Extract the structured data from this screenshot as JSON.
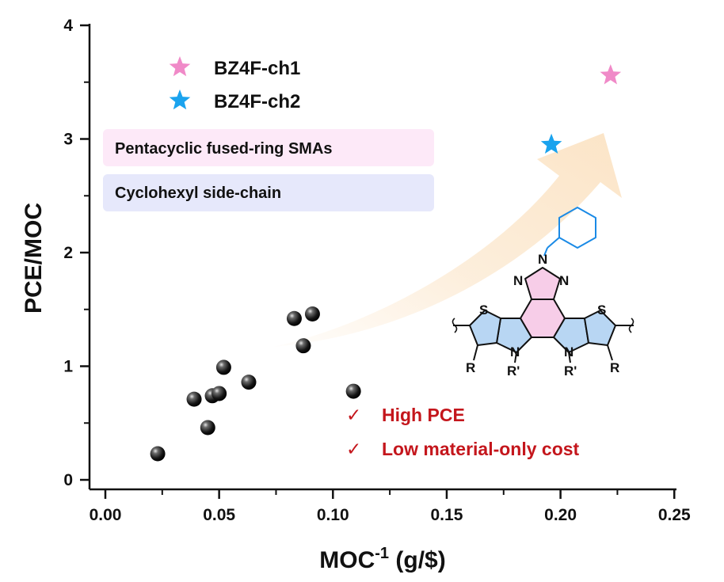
{
  "chart_data": {
    "type": "scatter",
    "xlabel": "MOC",
    "xlabel_sup": "-1",
    "xlabel_unit": " (g/$)",
    "ylabel": "PCE/MOC",
    "xlim": [
      -0.01,
      0.25
    ],
    "ylim": [
      -0.1,
      4.0
    ],
    "x_ticks": [
      "0.00",
      "0.05",
      "0.10",
      "0.15",
      "0.20",
      "0.25"
    ],
    "y_ticks": [
      "0",
      "1",
      "2",
      "3",
      "4"
    ],
    "grid": false,
    "legend_position": "top-left",
    "series": [
      {
        "name": "",
        "marker": "sphere",
        "color": "#111111",
        "points": [
          {
            "x": 0.023,
            "y": 0.23
          },
          {
            "x": 0.039,
            "y": 0.71
          },
          {
            "x": 0.045,
            "y": 0.46
          },
          {
            "x": 0.047,
            "y": 0.74
          },
          {
            "x": 0.05,
            "y": 0.76
          },
          {
            "x": 0.052,
            "y": 0.99
          },
          {
            "x": 0.063,
            "y": 0.86
          },
          {
            "x": 0.083,
            "y": 1.42
          },
          {
            "x": 0.087,
            "y": 1.18
          },
          {
            "x": 0.091,
            "y": 1.46
          },
          {
            "x": 0.109,
            "y": 0.78
          }
        ]
      },
      {
        "name": "BZ4F-ch1",
        "marker": "star",
        "color": "#f08ac8",
        "points": [
          {
            "x": 0.222,
            "y": 3.56
          }
        ]
      },
      {
        "name": "BZ4F-ch2",
        "marker": "star",
        "color": "#1aa3ee",
        "points": [
          {
            "x": 0.196,
            "y": 2.95
          }
        ]
      }
    ],
    "annotations": {
      "boxes": [
        {
          "text": "Pentacyclic fused-ring SMAs",
          "color": "#fde9f8"
        },
        {
          "text": "Cyclohexyl side-chain",
          "color": "#e6e8fb"
        }
      ],
      "checks": [
        {
          "mark": "✓",
          "text": "High PCE"
        },
        {
          "mark": "✓",
          "text": "Low material-only cost"
        }
      ],
      "check_color": "#c4161c",
      "arrow_color": "#fbe3c4"
    },
    "molecule": {
      "atoms_N": "N",
      "atoms_S": "S",
      "sidechain_R": "R",
      "sidechain_R_prime": "R'",
      "pink_ring_color": "#f7cde8",
      "blue_ring_color": "#b8d6f3",
      "cyclohexyl_color": "#1a8ae6"
    }
  }
}
